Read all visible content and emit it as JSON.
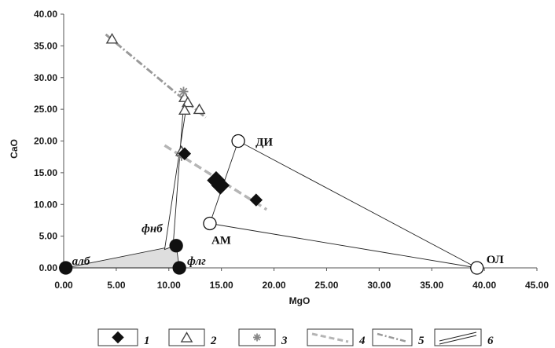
{
  "chart_data": {
    "type": "scatter",
    "title": "",
    "xlabel": "MgO",
    "ylabel": "CaO",
    "xlim": [
      0,
      45
    ],
    "ylim": [
      0,
      40
    ],
    "x_ticks": [
      "0.00",
      "5.00",
      "10.00",
      "15.00",
      "20.00",
      "25.00",
      "30.00",
      "35.00",
      "40.00",
      "45.00"
    ],
    "y_ticks": [
      "0.00",
      "5.00",
      "10.00",
      "15.00",
      "20.00",
      "25.00",
      "30.00",
      "35.00",
      "40.00"
    ],
    "grid": false,
    "series": [
      {
        "name": "1",
        "marker": "diamond-filled",
        "points": [
          [
            11.5,
            18.0
          ],
          [
            14.5,
            13.8
          ],
          [
            14.9,
            13.0
          ],
          [
            18.3,
            10.7
          ]
        ]
      },
      {
        "name": "2",
        "marker": "triangle-open",
        "points": [
          [
            4.6,
            36.0
          ],
          [
            11.5,
            26.8
          ],
          [
            11.8,
            26.0
          ],
          [
            11.5,
            24.8
          ],
          [
            12.9,
            24.9
          ],
          [
            11.2,
            18.3
          ]
        ]
      },
      {
        "name": "3",
        "marker": "asterisk",
        "points": [
          [
            11.4,
            27.8
          ],
          [
            11.2,
            17.6
          ]
        ]
      },
      {
        "name": "4",
        "marker": "dashed-line",
        "points": [
          [
            9.6,
            19.3
          ],
          [
            19.3,
            9.2
          ]
        ]
      },
      {
        "name": "5",
        "marker": "dash-dot-line",
        "points": [
          [
            4.0,
            36.8
          ],
          [
            13.5,
            23.7
          ]
        ]
      },
      {
        "name": "6",
        "marker": "double-line",
        "points": [
          [
            9.6,
            2.9
          ],
          [
            10.4,
            3.4
          ],
          [
            11.4,
            25.8
          ],
          [
            11.7,
            25.8
          ]
        ]
      }
    ],
    "polygons": [
      {
        "name": "ДИ-АМ-ОЛ",
        "vertices": [
          [
            16.6,
            20.0
          ],
          [
            13.9,
            7.0
          ],
          [
            39.3,
            0.0
          ]
        ],
        "fill": "none"
      },
      {
        "name": "алб-фнб-флг",
        "vertices": [
          [
            0.2,
            0.0
          ],
          [
            10.7,
            3.5
          ],
          [
            11.0,
            0.0
          ]
        ],
        "fill": "#dedede"
      }
    ],
    "endmembers": [
      {
        "label": "ДИ",
        "x": 16.6,
        "y": 20.0,
        "style": "open"
      },
      {
        "label": "АМ",
        "x": 13.9,
        "y": 7.0,
        "style": "open"
      },
      {
        "label": "ОЛ",
        "x": 39.3,
        "y": 0.0,
        "style": "open"
      },
      {
        "label": "алб",
        "x": 0.2,
        "y": 0.0,
        "style": "filled"
      },
      {
        "label": "фнб",
        "x": 10.7,
        "y": 3.5,
        "style": "filled"
      },
      {
        "label": "флг",
        "x": 11.0,
        "y": 0.0,
        "style": "filled"
      }
    ],
    "legend_position": "bottom",
    "legend_labels": [
      "1",
      "2",
      "3",
      "4",
      "5",
      "6"
    ],
    "colors": {
      "data": "#111111",
      "triangle": "#444444",
      "asterisk": "#888888",
      "dashed": "#b5b5b5",
      "dashdot": "#999999",
      "polygon_fill": "#dedede"
    }
  }
}
